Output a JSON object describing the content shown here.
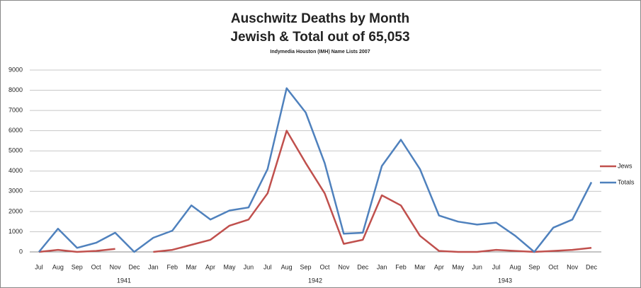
{
  "chart_data": {
    "type": "line",
    "title": "Auschwitz Deaths by Month",
    "title_line2": "Jewish & Total out of 65,053",
    "subtitle": "Indymedia Houston (IMH) Name Lists 2007",
    "categories": [
      "Jul",
      "Aug",
      "Sep",
      "Oct",
      "Nov",
      "Dec",
      "Jan",
      "Feb",
      "Mar",
      "Apr",
      "May",
      "Jun",
      "Jul",
      "Aug",
      "Sep",
      "Oct",
      "Nov",
      "Dec",
      "Jan",
      "Feb",
      "Mar",
      "Apr",
      "May",
      "Jun",
      "Jul",
      "Aug",
      "Sep",
      "Oct",
      "Nov",
      "Dec"
    ],
    "years": [
      "1941",
      "1942",
      "1943"
    ],
    "series": [
      {
        "name": "Jews",
        "color": "#c0504d",
        "values": [
          0,
          100,
          0,
          50,
          150,
          null,
          0,
          100,
          350,
          600,
          1300,
          1600,
          2900,
          6000,
          4400,
          2900,
          400,
          600,
          2800,
          2300,
          800,
          50,
          0,
          0,
          100,
          50,
          0,
          50,
          100,
          200
        ]
      },
      {
        "name": "Totals",
        "color": "#4f81bd",
        "values": [
          0,
          1150,
          200,
          450,
          950,
          0,
          700,
          1050,
          2300,
          1600,
          2050,
          2200,
          4100,
          8100,
          6900,
          4400,
          900,
          950,
          4250,
          5550,
          4100,
          1800,
          1500,
          1350,
          1450,
          800,
          0,
          1200,
          1600,
          3450
        ]
      }
    ],
    "ylim": [
      0,
      9000
    ],
    "yticks": [
      0,
      1000,
      2000,
      3000,
      4000,
      5000,
      6000,
      7000,
      8000,
      9000
    ],
    "grid": true,
    "legend": "right"
  }
}
